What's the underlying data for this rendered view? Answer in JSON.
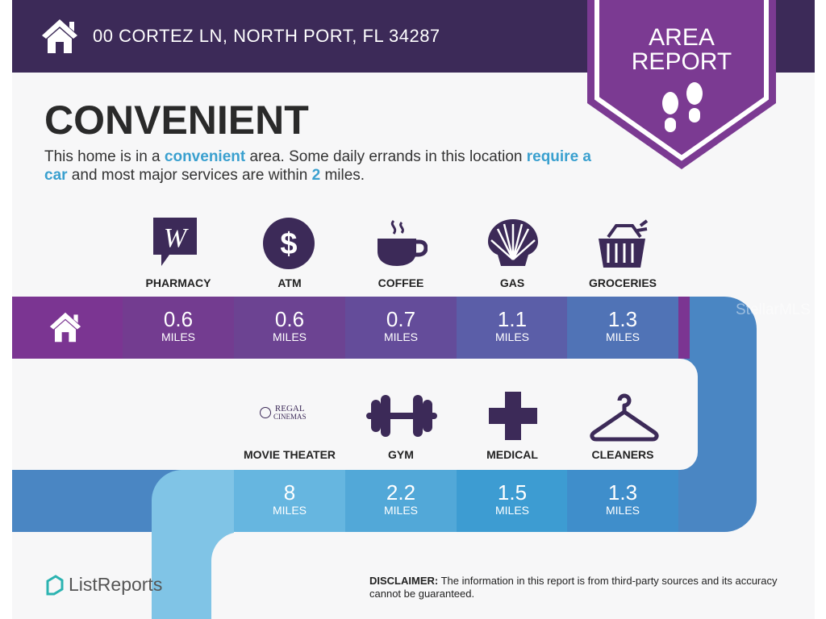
{
  "header": {
    "address": "00 CORTEZ LN, NORTH PORT, FL 34287",
    "icon": "home-icon"
  },
  "badge": {
    "line1": "AREA",
    "line2": "REPORT",
    "icon": "footprints-icon",
    "color": "#7b3a92"
  },
  "rating": {
    "title": "CONVENIENT",
    "desc": [
      {
        "t": "This home is in a ",
        "b": false
      },
      {
        "t": "convenient",
        "b": true
      },
      {
        "t": " area. Some daily errands in this location ",
        "b": false
      },
      {
        "t": "require a car",
        "b": true
      },
      {
        "t": " and most major services are within ",
        "b": false
      },
      {
        "t": "2",
        "b": true
      },
      {
        "t": " miles.",
        "b": false
      }
    ]
  },
  "row1": [
    {
      "label": "PHARMACY",
      "value": "0.6",
      "unit": "MILES",
      "icon": "walgreens-icon",
      "color": "#733c90"
    },
    {
      "label": "ATM",
      "value": "0.6",
      "unit": "MILES",
      "icon": "dollar-icon",
      "color": "#6c4392"
    },
    {
      "label": "COFFEE",
      "value": "0.7",
      "unit": "MILES",
      "icon": "coffee-cup-icon",
      "color": "#644c9a"
    },
    {
      "label": "GAS",
      "value": "1.1",
      "unit": "MILES",
      "icon": "shell-icon",
      "color": "#5b5ea8"
    },
    {
      "label": "GROCERIES",
      "value": "1.3",
      "unit": "MILES",
      "icon": "basket-icon",
      "color": "#5073b6"
    }
  ],
  "row2": [
    {
      "label": "MOVIE THEATER",
      "value": "8",
      "unit": "MILES",
      "icon": "regal-cinemas-icon",
      "logo_text": "REGAL CINEMAS",
      "color": "#66b6e0"
    },
    {
      "label": "GYM",
      "value": "2.2",
      "unit": "MILES",
      "icon": "dumbbell-icon",
      "color": "#52a8d8"
    },
    {
      "label": "MEDICAL",
      "value": "1.5",
      "unit": "MILES",
      "icon": "medical-cross-icon",
      "color": "#3d9cd2"
    },
    {
      "label": "CLEANERS",
      "value": "1.3",
      "unit": "MILES",
      "icon": "hanger-icon",
      "color": "#3f8ecb"
    }
  ],
  "watermark": "StellarMLS",
  "footer": {
    "brand": "ListReports",
    "disclaimer_label": "DISCLAIMER:",
    "disclaimer": " The information in this report is from third-party sources and its accuracy cannot be guaranteed."
  }
}
